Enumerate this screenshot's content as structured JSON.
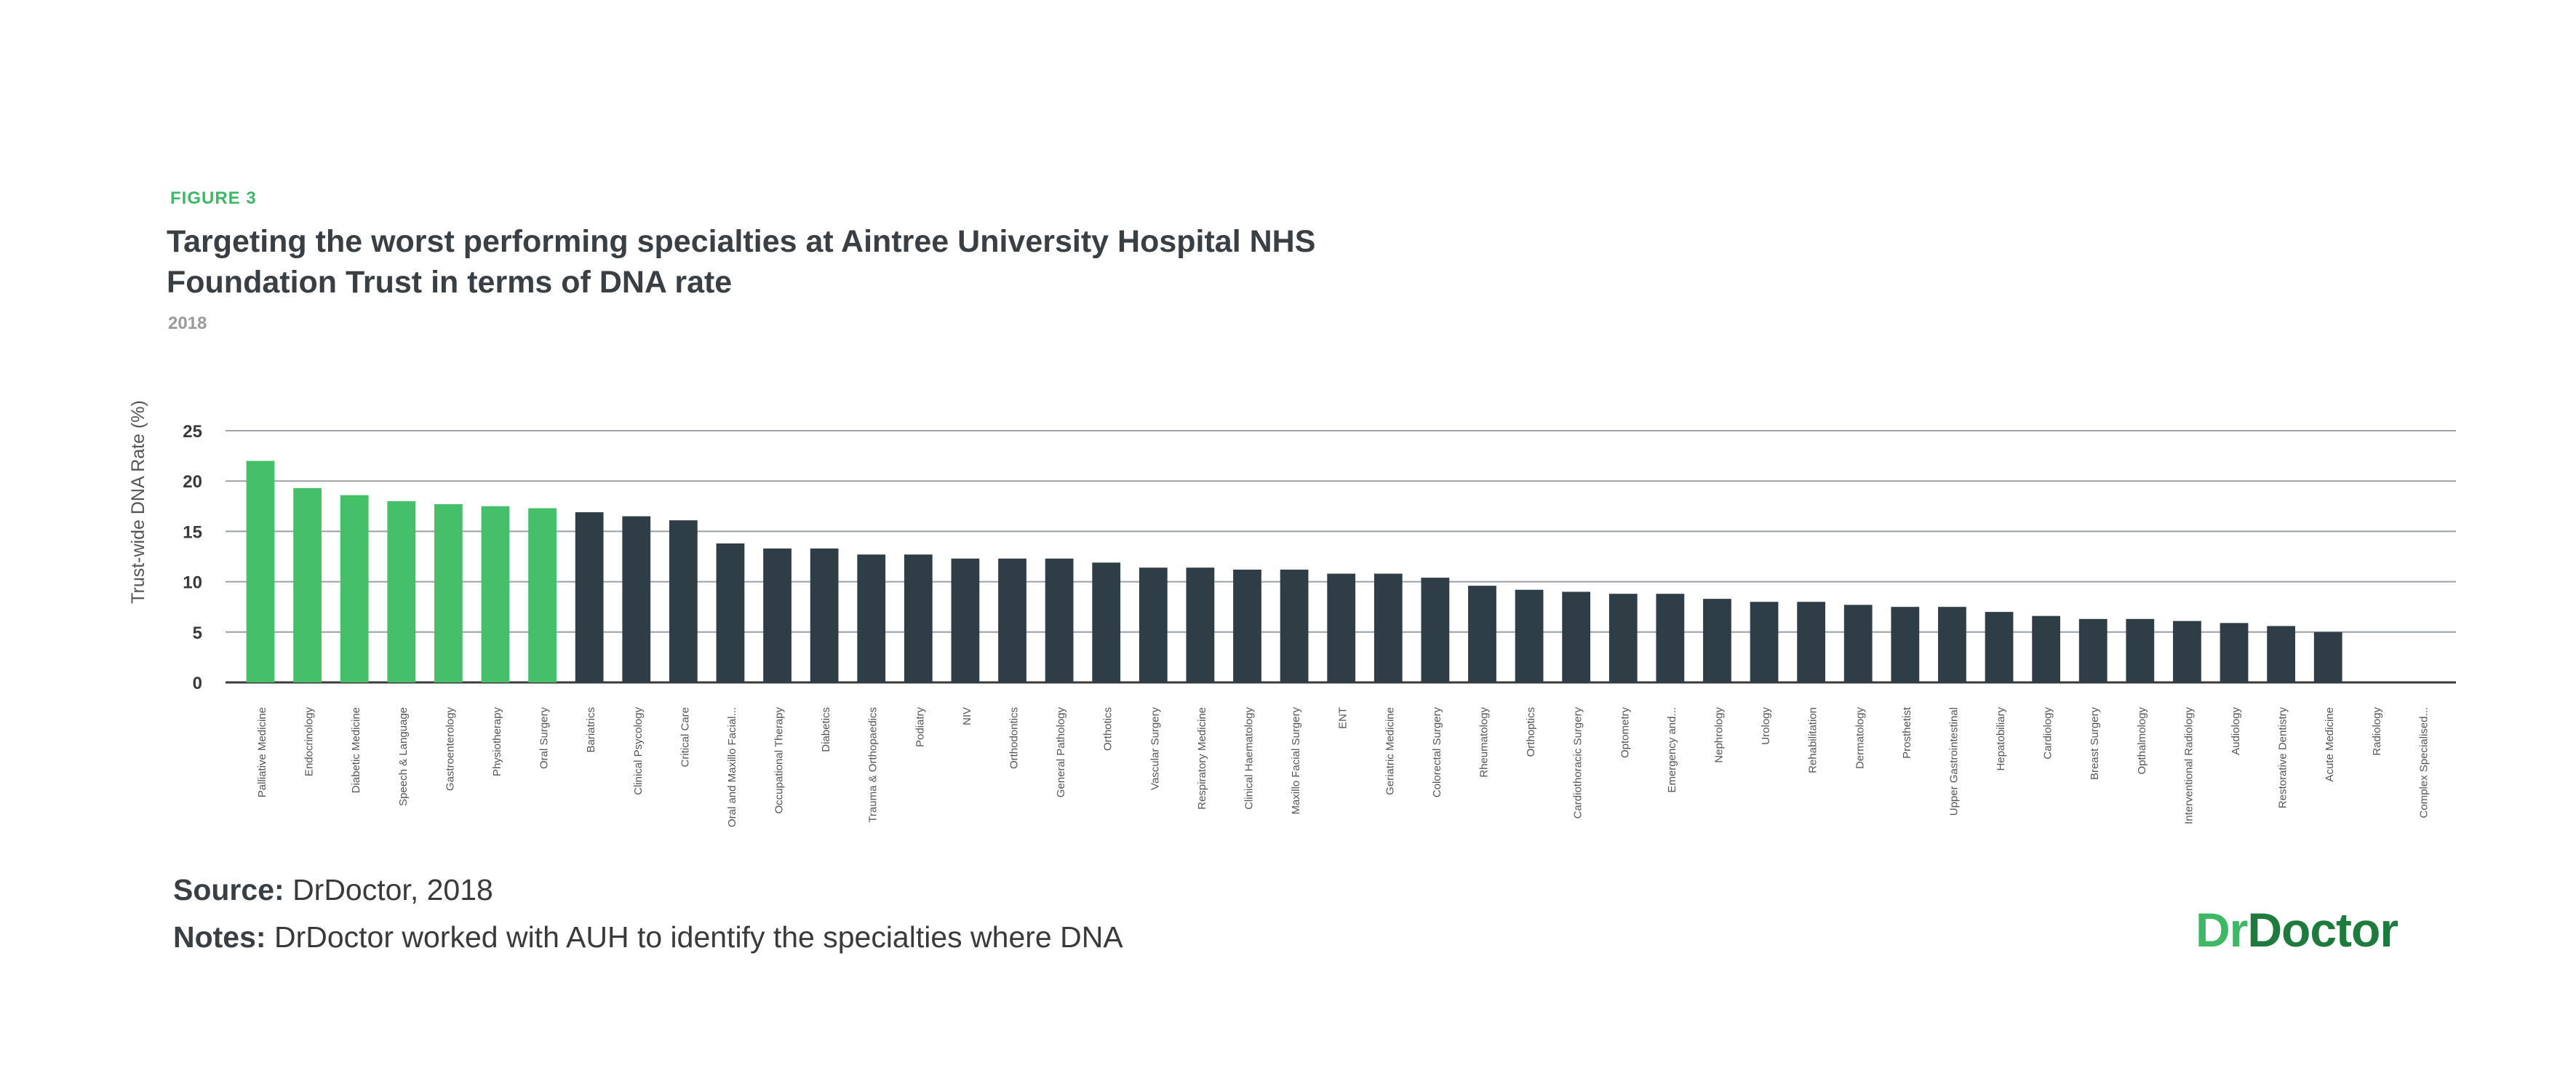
{
  "figure_label": "FIGURE 3",
  "title": "Targeting the worst performing specialties at Aintree University Hospital NHS Foundation Trust in terms of DNA rate",
  "subtitle": "2018",
  "source": {
    "label": "Source:",
    "text": "DrDoctor, 2018"
  },
  "notes": {
    "label": "Notes:",
    "text": "DrDoctor worked with AUH to identify the specialties where DNA"
  },
  "logo": {
    "part1": "Dr",
    "part2": "Doctor"
  },
  "colors": {
    "highlight": "#45bf68",
    "bar": "#2e3d46",
    "grid": "#9aa0a6",
    "axis": "#3a3a3a"
  },
  "chart_data": {
    "type": "bar",
    "ylabel": "Trust-wide DNA Rate (%)",
    "xlabel": "",
    "ylim": [
      0,
      25
    ],
    "yticks": [
      0,
      5,
      10,
      15,
      20,
      25
    ],
    "grid": true,
    "highlight_count": 7,
    "categories": [
      "Palliative Medicine",
      "Endocrinology",
      "Diabetic Medicine",
      "Speech & Language",
      "Gastroenterology",
      "Physiotherapy",
      "Oral Surgery",
      "Bariatrics",
      "Clinical Psycology",
      "Critical Care",
      "Oral and Maxillo Facial...",
      "Occupational Therapy",
      "Diabetics",
      "Trauma & Orthopaedics",
      "Podiatry",
      "NIV",
      "Orthodontics",
      "General Pathology",
      "Orthotics",
      "Vascular Surgery",
      "Respiratory Medicine",
      "Clinical Haematology",
      "Maxillo Facial Surgery",
      "ENT",
      "Geriatric Medicine",
      "Colorectal Surgery",
      "Rheumatology",
      "Orthoptics",
      "Cardiothoracic Surgery",
      "Optometry",
      "Emergency and...",
      "Nephrology",
      "Urology",
      "Rehabilitation",
      "Dermatology",
      "Prosthetist",
      "Upper Gastrointestinal",
      "Hepatobiliary",
      "Cardiology",
      "Breast Surgery",
      "Opthalmology",
      "Interventional Radiology",
      "Audiology",
      "Restorative Dentistry",
      "Acute Medicine",
      "Radiology",
      "Complex Specialised..."
    ],
    "values": [
      22.0,
      19.3,
      18.6,
      18.0,
      17.7,
      17.5,
      17.3,
      16.9,
      16.5,
      16.1,
      13.8,
      13.3,
      13.3,
      12.7,
      12.7,
      12.3,
      12.3,
      12.3,
      11.9,
      11.4,
      11.4,
      11.2,
      11.2,
      10.8,
      10.8,
      10.4,
      9.6,
      9.2,
      9.0,
      8.8,
      8.8,
      8.3,
      8.0,
      8.0,
      7.7,
      7.5,
      7.5,
      7.0,
      6.6,
      6.3,
      6.3,
      6.1,
      5.9,
      5.6,
      5.0,
      0,
      0
    ]
  }
}
